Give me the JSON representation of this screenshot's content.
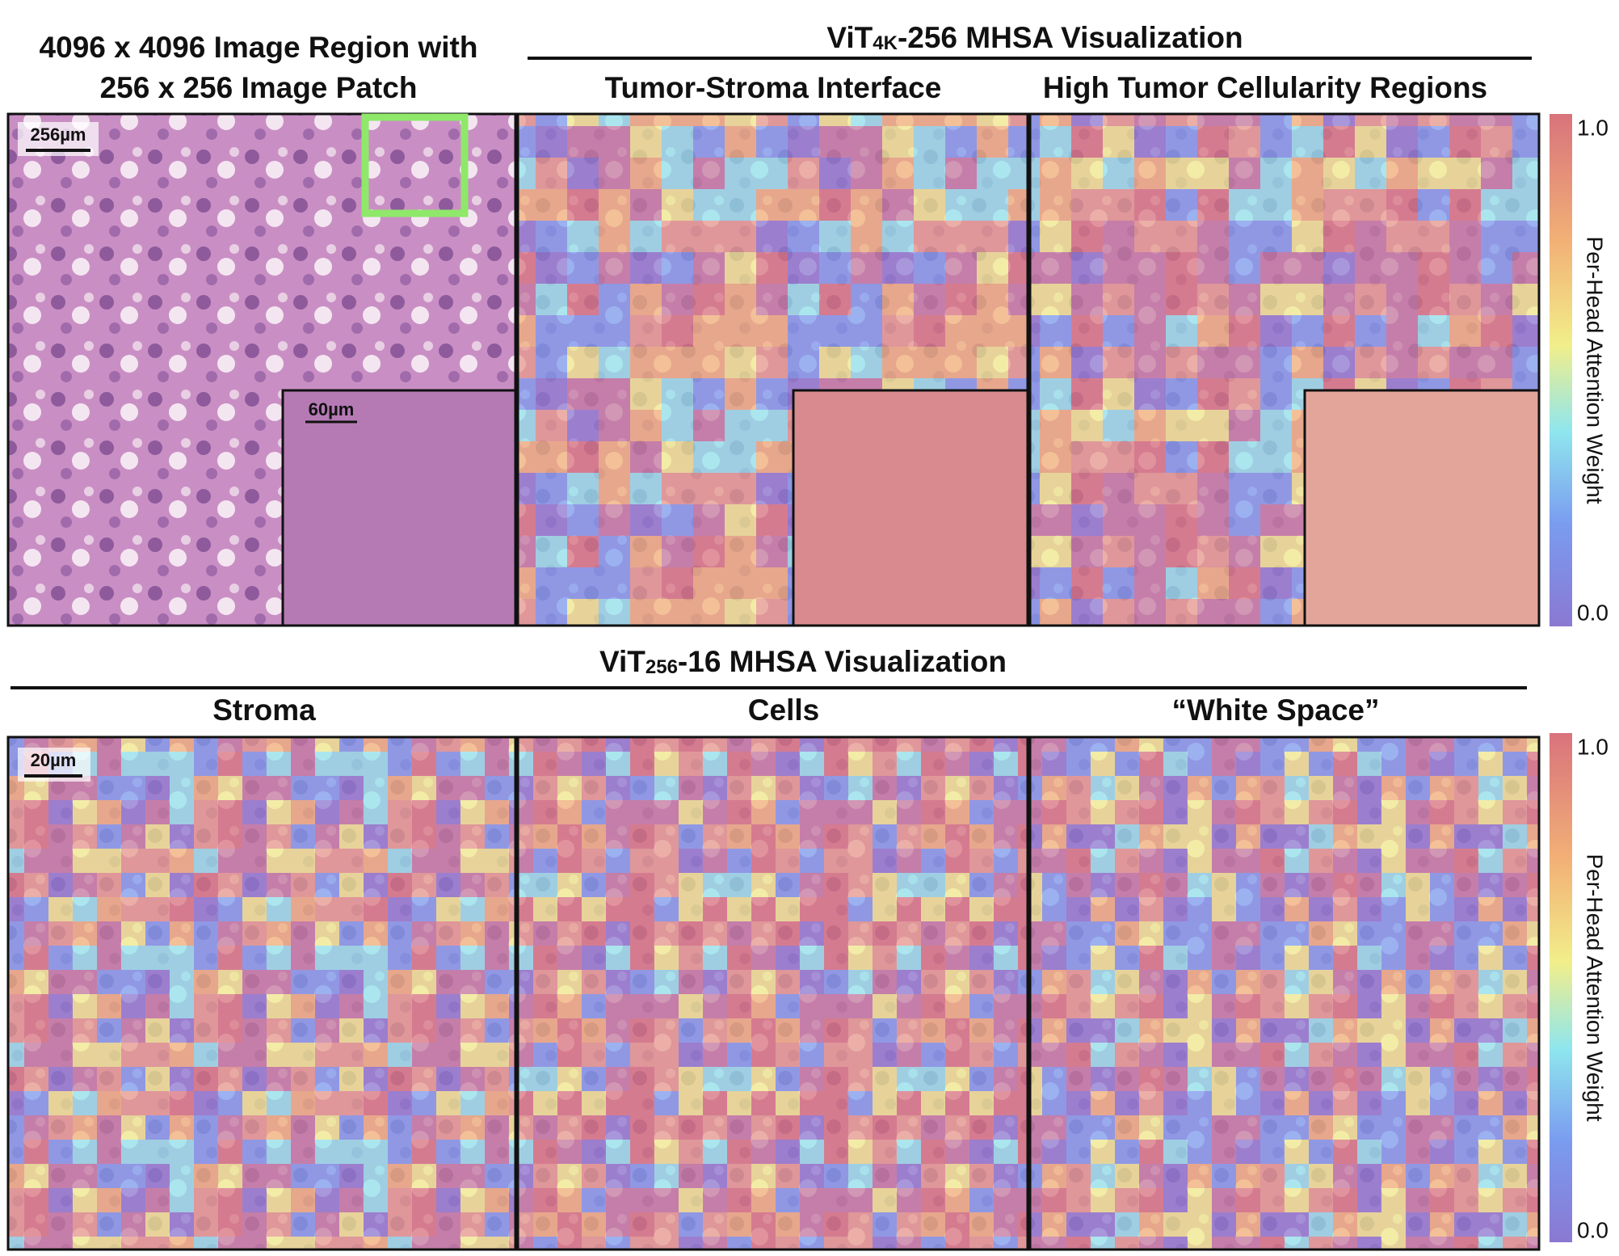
{
  "left_title": {
    "line1": "4096 x 4096 Image Region with",
    "line2": "256 x 256 Image Patch"
  },
  "top_section": {
    "title_prefix": "ViT",
    "title_sub": "4K",
    "title_suffix": "-256 MHSA Visualization",
    "panels": [
      "Tumor-Stroma Interface",
      "High Tumor Cellularity Regions"
    ]
  },
  "bottom_section": {
    "title_prefix": "ViT",
    "title_sub": "256",
    "title_suffix": "-16 MHSA Visualization",
    "panels": [
      "Stroma",
      "Cells",
      "“White Space”"
    ]
  },
  "scale_bars": {
    "region": "256µm",
    "inset": "60µm",
    "patch": "20µm"
  },
  "colorbar": {
    "max": "1.0",
    "min": "0.0",
    "label": "Per-Head Attention Weight"
  }
}
